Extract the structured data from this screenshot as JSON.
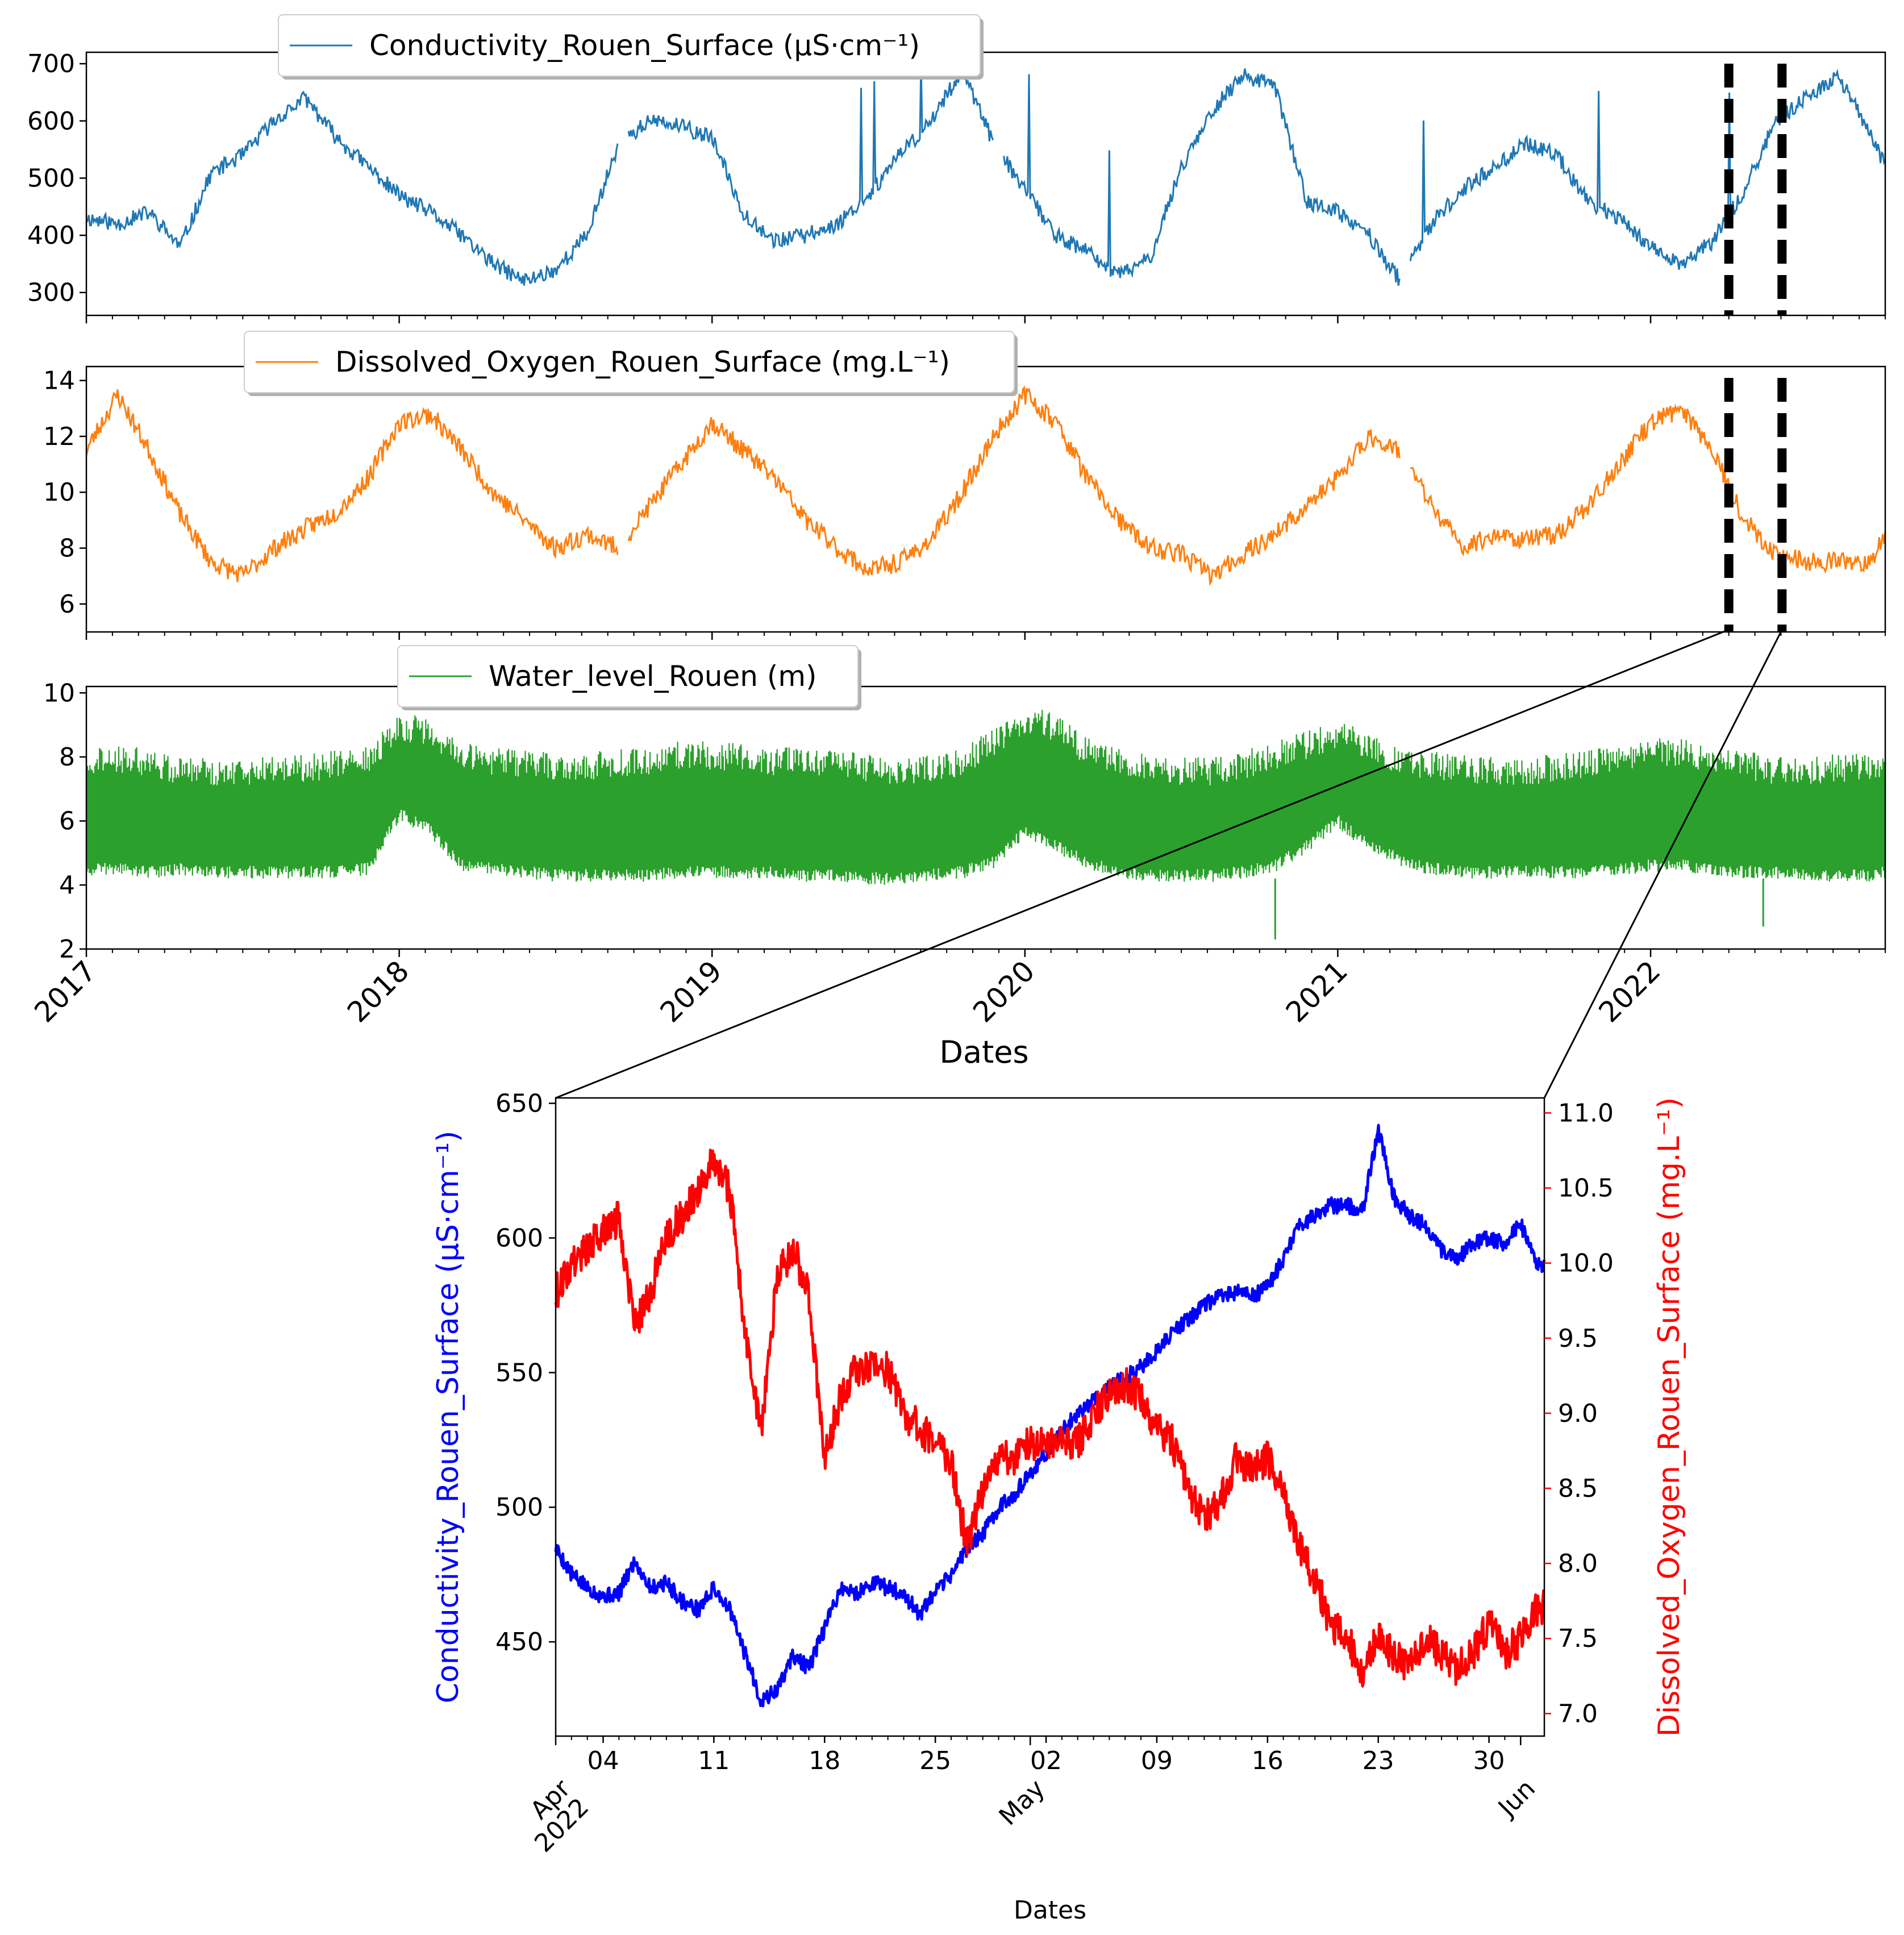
{
  "colors": {
    "conductivity": "#1f77b4",
    "oxygen": "#ff7f0e",
    "water": "#2ca02c",
    "zoom_conductivity": "#0000ff",
    "zoom_oxygen": "#ff0000"
  },
  "chart_data": [
    {
      "id": "conductivity_panel",
      "type": "line",
      "legend": "Conductivity_Rouen_Surface (µS·cm⁻¹)",
      "legend_position": "top-left",
      "xlim": [
        2017.0,
        2022.75
      ],
      "ylim": [
        260,
        720
      ],
      "yticks": [
        "300",
        "400",
        "500",
        "600",
        "700"
      ],
      "ytick_values": [
        300,
        400,
        500,
        600,
        700
      ],
      "x": [
        2017.0,
        2017.1,
        2017.2,
        2017.3,
        2017.4,
        2017.5,
        2017.6,
        2017.7,
        2017.8,
        2017.9,
        2018.0,
        2018.1,
        2018.2,
        2018.3,
        2018.4,
        2018.5,
        2018.6,
        2018.7,
        2018.8,
        2018.9,
        2019.0,
        2019.1,
        2019.2,
        2019.3,
        2019.4,
        2019.5,
        2019.6,
        2019.7,
        2019.8,
        2019.9,
        2020.0,
        2020.1,
        2020.2,
        2020.3,
        2020.4,
        2020.5,
        2020.6,
        2020.7,
        2020.8,
        2020.9,
        2021.0,
        2021.1,
        2021.2,
        2021.3,
        2021.4,
        2021.5,
        2021.6,
        2021.7,
        2021.8,
        2021.9,
        2022.0,
        2022.1,
        2022.2,
        2022.3,
        2022.4,
        2022.5,
        2022.6,
        2022.7,
        2022.75
      ],
      "values": [
        430,
        420,
        440,
        380,
        510,
        540,
        600,
        640,
        570,
        520,
        470,
        440,
        400,
        350,
        320,
        340,
        400,
        560,
        600,
        590,
        570,
        440,
        390,
        400,
        420,
        470,
        540,
        600,
        690,
        560,
        480,
        400,
        370,
        330,
        360,
        520,
        620,
        680,
        660,
        460,
        440,
        400,
        320,
        420,
        480,
        520,
        560,
        540,
        460,
        430,
        380,
        350,
        390,
        480,
        600,
        640,
        680,
        580,
        520
      ],
      "gaps_after_x": [
        2018.7,
        2019.9,
        2021.2
      ],
      "zoom_markers_x": [
        2022.25,
        2022.42
      ]
    },
    {
      "id": "oxygen_panel",
      "type": "line",
      "legend": "Dissolved_Oxygen_Rouen_Surface (mg.L⁻¹)",
      "legend_position": "top-left",
      "xlim": [
        2017.0,
        2022.75
      ],
      "ylim": [
        5.0,
        14.5
      ],
      "yticks": [
        "6",
        "8",
        "10",
        "12",
        "14"
      ],
      "ytick_values": [
        6,
        8,
        10,
        12,
        14
      ],
      "x": [
        2017.0,
        2017.1,
        2017.2,
        2017.3,
        2017.4,
        2017.5,
        2017.6,
        2017.7,
        2017.8,
        2017.9,
        2018.0,
        2018.1,
        2018.2,
        2018.3,
        2018.4,
        2018.5,
        2018.6,
        2018.7,
        2018.8,
        2018.9,
        2019.0,
        2019.1,
        2019.2,
        2019.3,
        2019.4,
        2019.5,
        2019.6,
        2019.7,
        2019.8,
        2019.9,
        2020.0,
        2020.1,
        2020.2,
        2020.3,
        2020.4,
        2020.5,
        2020.6,
        2020.7,
        2020.8,
        2020.9,
        2021.0,
        2021.1,
        2021.2,
        2021.3,
        2021.4,
        2021.5,
        2021.6,
        2021.7,
        2021.8,
        2021.9,
        2022.0,
        2022.1,
        2022.2,
        2022.3,
        2022.4,
        2022.5,
        2022.6,
        2022.7,
        2022.75
      ],
      "values": [
        11.5,
        13.5,
        11.5,
        9.2,
        7.5,
        7.0,
        8.0,
        8.7,
        9.3,
        10.5,
        12.5,
        12.8,
        11.5,
        10.0,
        9.0,
        8.0,
        8.5,
        8.0,
        9.5,
        11.0,
        12.5,
        11.5,
        10.5,
        9.0,
        8.0,
        7.2,
        7.5,
        8.3,
        10.0,
        12.0,
        13.5,
        12.5,
        10.5,
        9.0,
        8.0,
        7.8,
        7.0,
        7.8,
        8.5,
        9.5,
        10.5,
        12.0,
        11.5,
        9.5,
        8.0,
        8.5,
        8.3,
        8.5,
        9.5,
        11.0,
        12.5,
        13.0,
        11.5,
        9.0,
        7.8,
        7.5,
        7.5,
        7.5,
        8.5
      ],
      "gaps_after_x": [
        2018.7,
        2021.2
      ],
      "zoom_markers_x": [
        2022.25,
        2022.42
      ]
    },
    {
      "id": "water_level_panel",
      "type": "line",
      "legend": "Water_level_Rouen (m)",
      "legend_position": "top-left",
      "xlim": [
        2017.0,
        2022.75
      ],
      "ylim": [
        2.0,
        10.2
      ],
      "yticks": [
        "2",
        "4",
        "6",
        "8",
        "10"
      ],
      "ytick_values": [
        2,
        4,
        6,
        8,
        10
      ],
      "x_ticks": [
        "2017",
        "2018",
        "2019",
        "2020",
        "2021",
        "2022"
      ],
      "x_tick_values": [
        2017,
        2018,
        2019,
        2020,
        2021,
        2022
      ],
      "xlabel": "Dates",
      "band_lower": [
        4.3,
        4.3,
        4.2,
        4.3,
        4.2,
        4.2,
        4.2,
        4.2,
        4.2,
        4.3,
        6.0,
        5.5,
        4.4,
        4.3,
        4.2,
        4.1,
        4.1,
        4.1,
        4.1,
        4.2,
        4.2,
        4.2,
        4.2,
        4.1,
        4.1,
        4.0,
        4.0,
        4.1,
        4.2,
        4.5,
        5.5,
        5.0,
        4.5,
        4.2,
        4.1,
        4.1,
        4.1,
        4.2,
        4.4,
        5.0,
        5.8,
        5.0,
        4.6,
        4.3,
        4.2,
        4.2,
        4.2,
        4.2,
        4.2,
        4.3,
        4.4,
        4.4,
        4.3,
        4.2,
        4.2,
        4.1,
        4.1,
        4.1,
        4.2
      ],
      "band_upper": [
        8.2,
        8.4,
        8.3,
        8.0,
        8.0,
        8.0,
        8.1,
        8.1,
        8.2,
        8.4,
        9.4,
        9.2,
        8.6,
        8.3,
        8.2,
        8.2,
        8.1,
        8.3,
        8.3,
        8.5,
        8.5,
        8.4,
        8.3,
        8.3,
        8.2,
        8.1,
        8.0,
        8.1,
        8.3,
        8.9,
        9.6,
        9.4,
        8.6,
        8.3,
        8.1,
        8.0,
        8.0,
        8.2,
        8.5,
        8.8,
        9.2,
        8.8,
        8.3,
        8.2,
        8.1,
        8.0,
        8.0,
        8.1,
        8.2,
        8.4,
        8.6,
        8.6,
        8.3,
        8.2,
        8.0,
        8.0,
        8.1,
        8.1,
        8.2
      ],
      "dips": [
        {
          "x": 2020.8,
          "y": 2.3
        },
        {
          "x": 2022.36,
          "y": 2.7
        }
      ]
    },
    {
      "id": "zoom_panel",
      "type": "line",
      "title": "",
      "xlabel": "Dates",
      "ylabel_left": "Conductivity_Rouen_Surface (µS·cm⁻¹)",
      "ylabel_right": "Dissolved_Oxygen_Rouen_Surface (mg.L⁻¹)",
      "x_range_days": [
        0,
        62.5
      ],
      "ylim_left": [
        415,
        652
      ],
      "ylim_right": [
        6.85,
        11.1
      ],
      "left_ticks": [
        "450",
        "500",
        "550",
        "600",
        "650"
      ],
      "left_tick_values": [
        450,
        500,
        550,
        600,
        650
      ],
      "right_ticks": [
        "7.0",
        "7.5",
        "8.0",
        "8.5",
        "9.0",
        "9.5",
        "10.0",
        "10.5",
        "11.0"
      ],
      "right_tick_values": [
        7.0,
        7.5,
        8.0,
        8.5,
        9.0,
        9.5,
        10.0,
        10.5,
        11.0
      ],
      "minor_tick_labels": [
        "04",
        "11",
        "18",
        "25",
        "02",
        "09",
        "16",
        "23",
        "30"
      ],
      "minor_tick_days": [
        3,
        10,
        17,
        24,
        31,
        38,
        45,
        52,
        59
      ],
      "major_tick_labels": [
        "Apr\n2022",
        "May",
        "Jun"
      ],
      "major_tick_days": [
        0,
        30,
        61
      ],
      "series": [
        {
          "name": "Conductivity_Rouen_Surface",
          "axis": "left",
          "x_days": [
            0,
            1,
            2,
            3,
            4,
            5,
            6,
            7,
            8,
            9,
            10,
            11,
            12,
            13,
            14,
            15,
            16,
            17,
            18,
            19,
            20,
            21,
            22,
            23,
            24,
            25,
            26,
            27,
            28,
            29,
            30,
            31,
            32,
            33,
            34,
            35,
            36,
            37,
            38,
            39,
            40,
            41,
            42,
            43,
            44,
            45,
            46,
            47,
            48,
            49,
            50,
            51,
            52,
            53,
            54,
            55,
            56,
            57,
            58,
            59,
            60,
            61,
            62
          ],
          "values": [
            485,
            475,
            470,
            467,
            468,
            480,
            470,
            472,
            465,
            462,
            470,
            462,
            445,
            428,
            432,
            445,
            440,
            455,
            470,
            468,
            472,
            470,
            468,
            460,
            468,
            475,
            485,
            490,
            500,
            505,
            512,
            520,
            528,
            535,
            540,
            545,
            548,
            552,
            558,
            565,
            570,
            575,
            578,
            580,
            578,
            582,
            592,
            605,
            608,
            612,
            612,
            610,
            640,
            615,
            608,
            605,
            595,
            592,
            598,
            600,
            598,
            605,
            590
          ]
        },
        {
          "name": "Dissolved_Oxygen_Rouen_Surface",
          "axis": "right",
          "x_days": [
            0,
            1,
            2,
            3,
            4,
            5,
            6,
            7,
            8,
            9,
            10,
            11,
            12,
            13,
            14,
            15,
            16,
            17,
            18,
            19,
            20,
            21,
            22,
            23,
            24,
            25,
            26,
            27,
            28,
            29,
            30,
            31,
            32,
            33,
            34,
            35,
            36,
            37,
            38,
            39,
            40,
            41,
            42,
            43,
            44,
            45,
            46,
            47,
            48,
            49,
            50,
            51,
            52,
            53,
            54,
            55,
            56,
            57,
            58,
            59,
            60,
            61,
            62
          ],
          "values": [
            9.8,
            10.0,
            10.1,
            10.2,
            10.3,
            9.6,
            9.8,
            10.2,
            10.3,
            10.5,
            10.7,
            10.5,
            9.5,
            8.9,
            9.9,
            10.1,
            9.8,
            8.7,
            9.1,
            9.3,
            9.3,
            9.3,
            9.0,
            8.9,
            8.8,
            8.7,
            8.1,
            8.5,
            8.7,
            8.7,
            8.8,
            8.8,
            8.8,
            8.8,
            9.0,
            9.1,
            9.2,
            9.1,
            8.9,
            8.8,
            8.5,
            8.3,
            8.4,
            8.7,
            8.6,
            8.7,
            8.5,
            8.1,
            7.9,
            7.6,
            7.5,
            7.3,
            7.5,
            7.4,
            7.3,
            7.5,
            7.4,
            7.3,
            7.4,
            7.6,
            7.4,
            7.5,
            7.7
          ]
        }
      ]
    }
  ]
}
